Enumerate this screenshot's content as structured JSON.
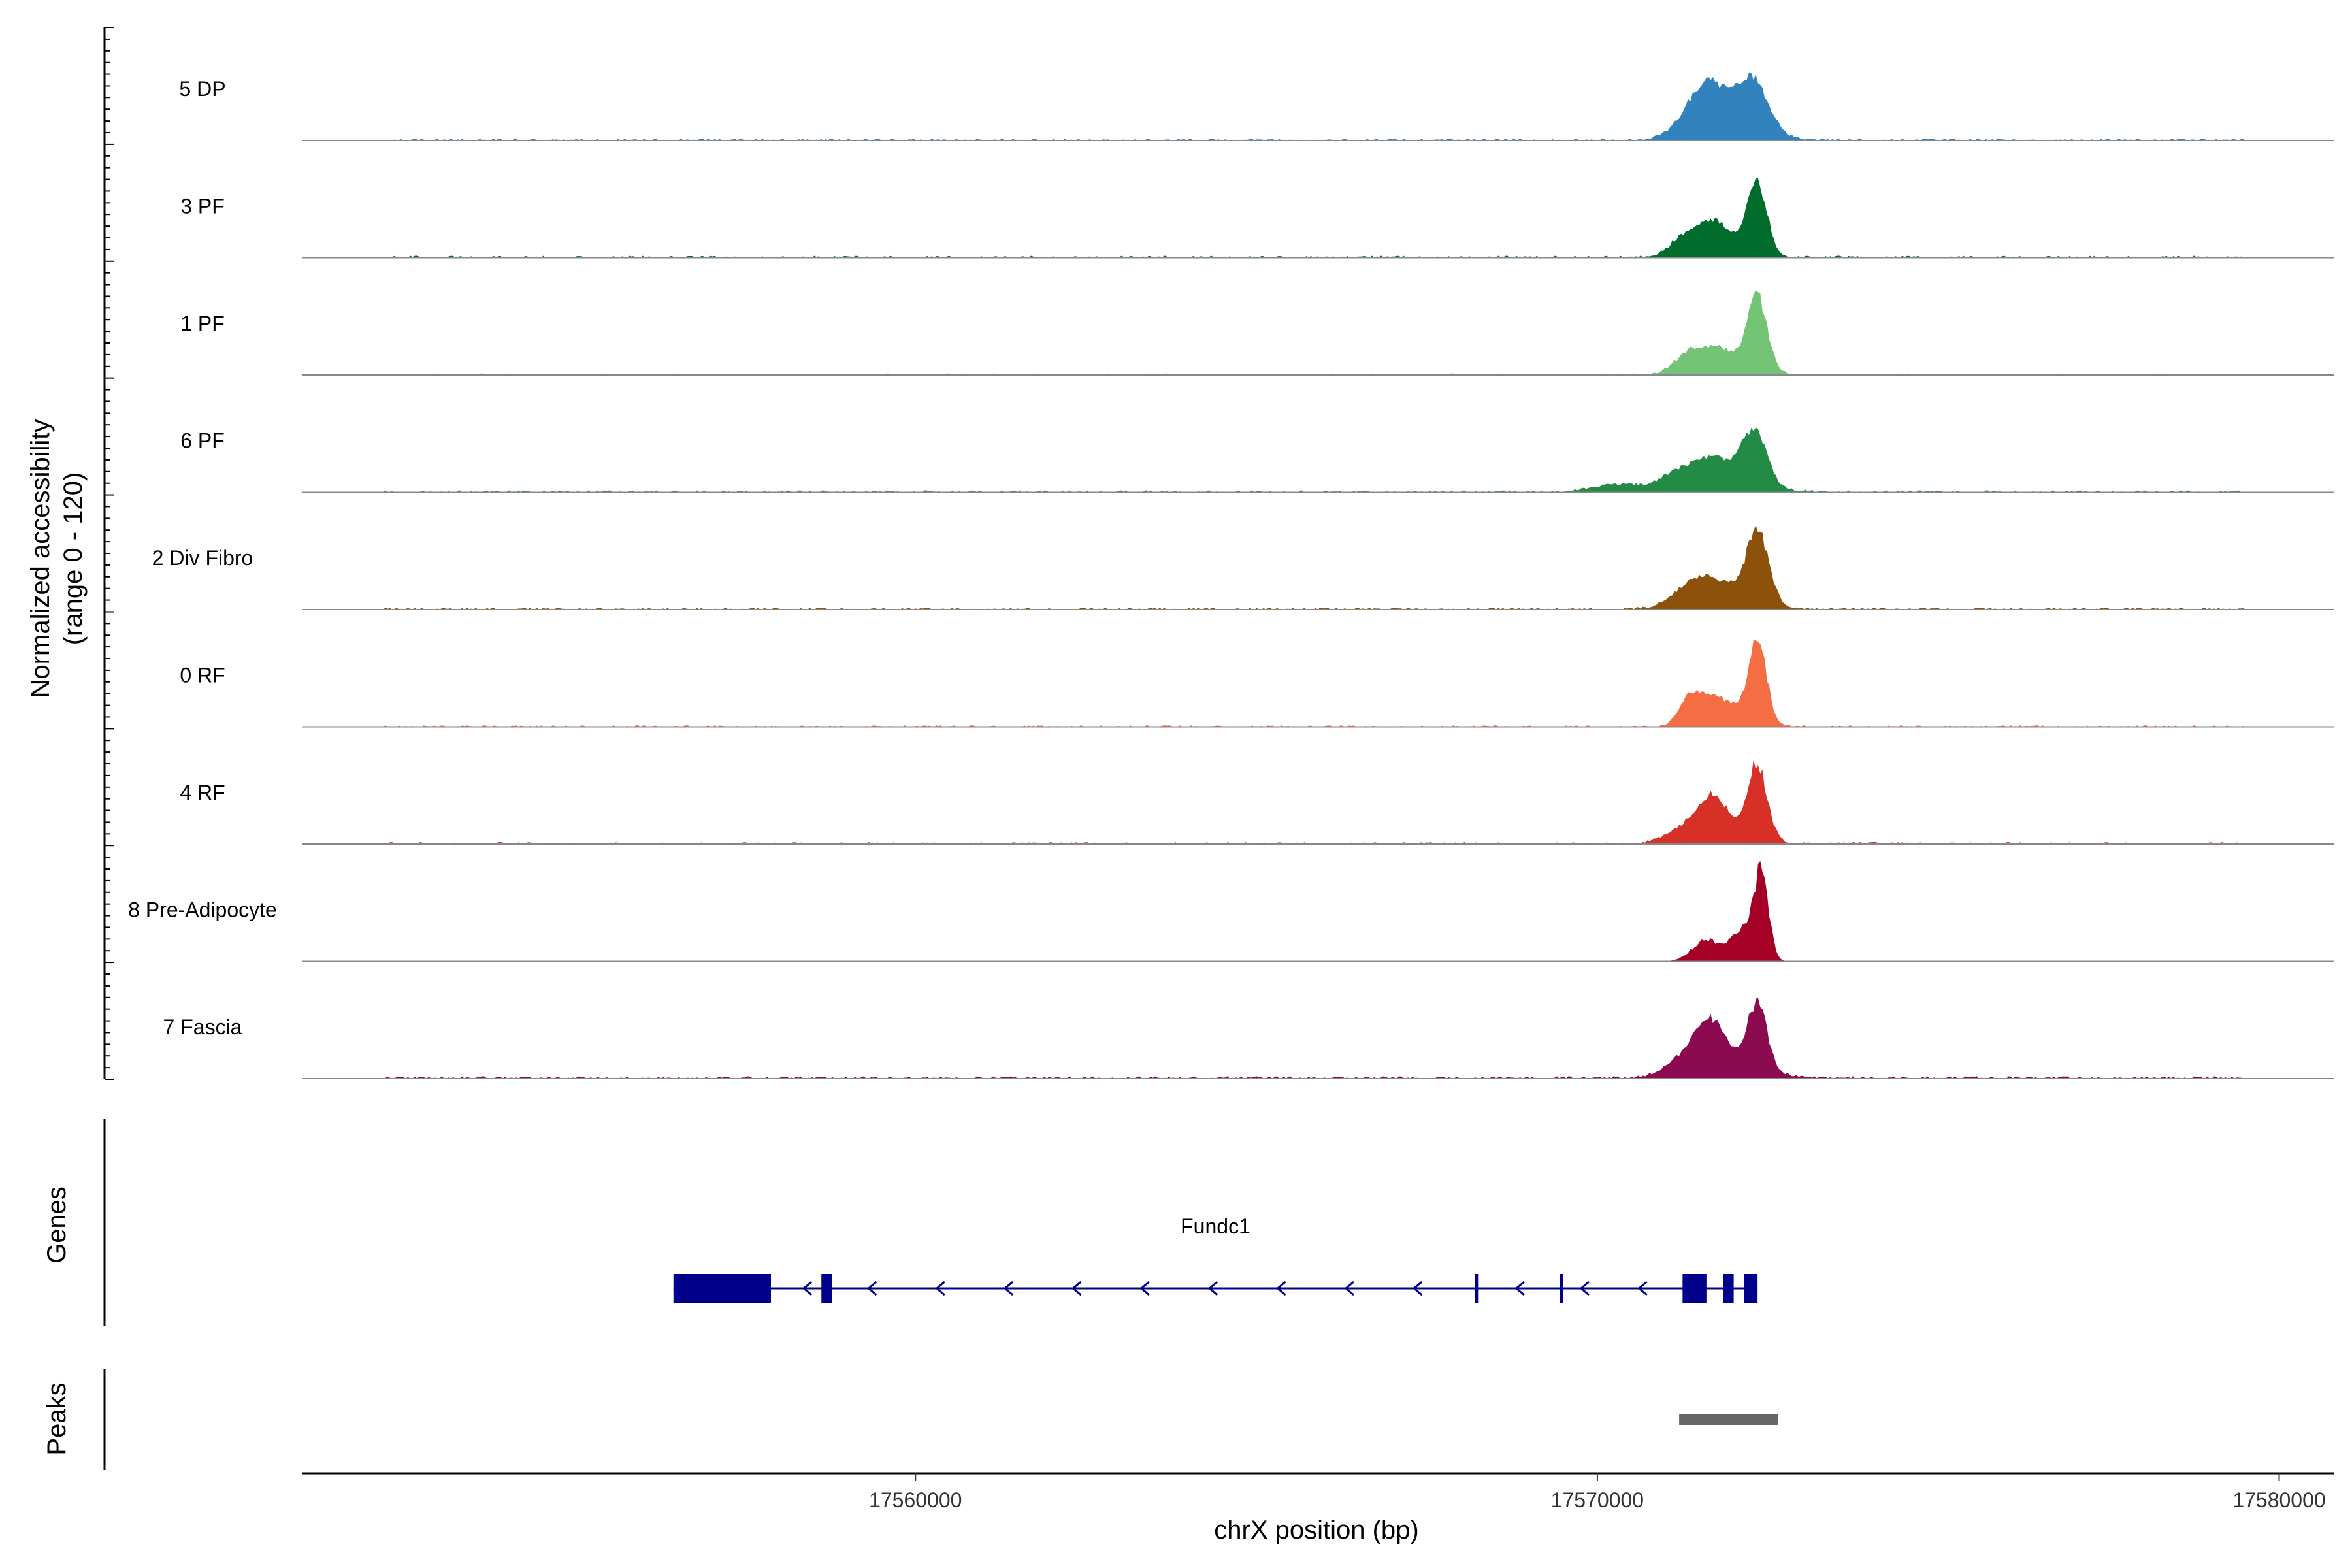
{
  "chart_data": {
    "type": "area",
    "xlabel": "chrX position (bp)",
    "ylabel": "Normalized accessibility",
    "ylabel_range": "(range 0 - 120)",
    "ylim": [
      0,
      120
    ],
    "xlim": [
      17551000,
      17580800
    ],
    "x_ticks": [
      17560000,
      17570000,
      17580000
    ],
    "x_tick_labels": [
      "17560000",
      "17570000",
      "17580000"
    ],
    "grid": false,
    "tracks": [
      {
        "name": "5 DP",
        "color": "#3182BD",
        "bg": 2.5,
        "peaks": [
          [
            17571600,
            60,
            300
          ],
          [
            17572300,
            62,
            220
          ],
          [
            17571900,
            25,
            450
          ]
        ]
      },
      {
        "name": "3 PF",
        "color": "#006D2C",
        "bg": 2.5,
        "peaks": [
          [
            17571300,
            28,
            220
          ],
          [
            17571700,
            34,
            200
          ],
          [
            17572350,
            95,
            140
          ],
          [
            17572000,
            20,
            300
          ]
        ]
      },
      {
        "name": "1 PF",
        "color": "#74C476",
        "bg": 2,
        "peaks": [
          [
            17571300,
            22,
            200
          ],
          [
            17571700,
            26,
            250
          ],
          [
            17572350,
            100,
            140
          ],
          [
            17572000,
            15,
            350
          ]
        ]
      },
      {
        "name": "6 PF",
        "color": "#238B45",
        "bg": 2.5,
        "peaks": [
          [
            17570250,
            10,
            350
          ],
          [
            17571200,
            22,
            300
          ],
          [
            17571700,
            30,
            250
          ],
          [
            17572300,
            75,
            180
          ],
          [
            17571900,
            15,
            500
          ]
        ]
      },
      {
        "name": "2 Div Fibro",
        "color": "#8C510A",
        "bg": 2.5,
        "peaks": [
          [
            17571300,
            18,
            250
          ],
          [
            17571700,
            28,
            300
          ],
          [
            17572350,
            100,
            160
          ],
          [
            17571900,
            12,
            500
          ]
        ]
      },
      {
        "name": "0 RF",
        "color": "#F46D43",
        "bg": 2,
        "peaks": [
          [
            17571350,
            38,
            150
          ],
          [
            17571700,
            30,
            200
          ],
          [
            17572350,
            112,
            130
          ],
          [
            17572000,
            18,
            300
          ]
        ]
      },
      {
        "name": "4 RF",
        "color": "#D73027",
        "bg": 2.5,
        "peaks": [
          [
            17571300,
            22,
            280
          ],
          [
            17571700,
            50,
            200
          ],
          [
            17572350,
            100,
            140
          ],
          [
            17572000,
            15,
            350
          ]
        ]
      },
      {
        "name": "8 Pre-Adipocyte",
        "color": "#A50026",
        "bg": 0,
        "peaks": [
          [
            17571600,
            30,
            200
          ],
          [
            17572100,
            40,
            150
          ],
          [
            17572400,
            120,
            110
          ]
        ]
      },
      {
        "name": "7 Fascia",
        "color": "#8B0A50",
        "bg": 3,
        "peaks": [
          [
            17571400,
            30,
            300
          ],
          [
            17571700,
            45,
            200
          ],
          [
            17572350,
            92,
            140
          ],
          [
            17571900,
            20,
            500
          ]
        ]
      }
    ],
    "genes_track": {
      "title": "Genes",
      "gene": {
        "name": "Fundc1",
        "start": 17556450,
        "end": 17572350,
        "strand": "-",
        "color": "#00008B",
        "exons": [
          [
            17556450,
            17557880
          ],
          [
            17558620,
            17558780
          ],
          [
            17568200,
            17568260
          ],
          [
            17569450,
            17569500
          ],
          [
            17571250,
            17571600
          ],
          [
            17571850,
            17572000
          ],
          [
            17572150,
            17572350
          ]
        ],
        "arrows": [
          17558400,
          17559350,
          17560350,
          17561350,
          17562350,
          17563350,
          17564350,
          17565350,
          17566350,
          17567350,
          17568850,
          17569800,
          17570650
        ]
      }
    },
    "peaks_track": {
      "title": "Peaks",
      "color": "#666666",
      "regions": [
        [
          17571200,
          17572650
        ]
      ]
    }
  }
}
